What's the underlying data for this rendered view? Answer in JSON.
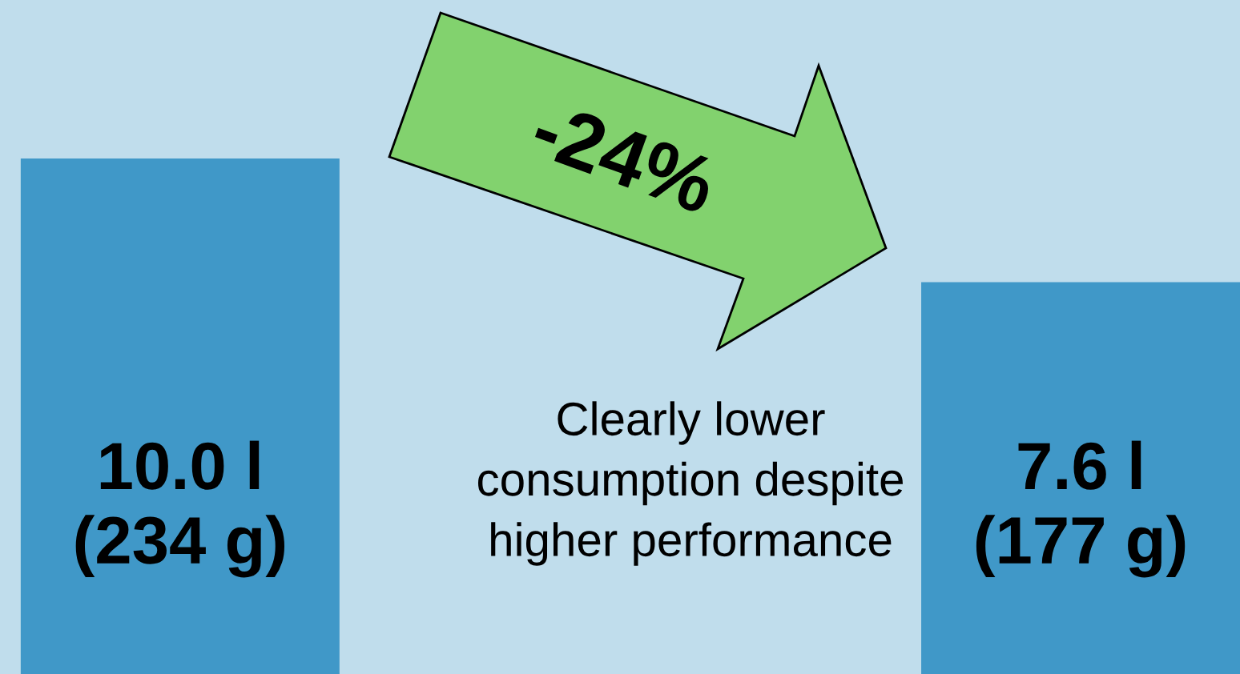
{
  "chart_data": {
    "type": "bar",
    "categories": [
      null,
      null
    ],
    "values": [
      10.0,
      7.6
    ],
    "color": "#4098c8",
    "value_labels": [
      "10.0 l\n(234 g)",
      "7.6 l\n(177 g)"
    ],
    "annotations": [
      "-24%",
      "Clearly lower\nconsumption despite\nhigher performance"
    ]
  }
}
